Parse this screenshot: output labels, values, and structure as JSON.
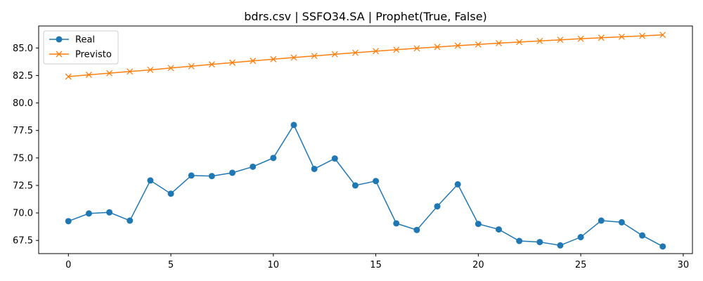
{
  "chart_data": {
    "type": "line",
    "title": "bdrs.csv | SSFO34.SA | Prophet(True, False)",
    "xlabel": "",
    "ylabel": "",
    "xlim": [
      -1.45,
      30.45
    ],
    "ylim": [
      66.3,
      87.0
    ],
    "x_ticks": [
      0,
      5,
      10,
      15,
      20,
      25,
      30
    ],
    "y_ticks": [
      67.5,
      70.0,
      72.5,
      75.0,
      77.5,
      80.0,
      82.5,
      85.0
    ],
    "y_tick_labels": [
      "67.5",
      "70.0",
      "72.5",
      "75.0",
      "77.5",
      "80.0",
      "82.5",
      "85.0"
    ],
    "grid": false,
    "legend_position": "top-left",
    "x": [
      0,
      1,
      2,
      3,
      4,
      5,
      6,
      7,
      8,
      9,
      10,
      11,
      12,
      13,
      14,
      15,
      16,
      17,
      18,
      19,
      20,
      21,
      22,
      23,
      24,
      25,
      26,
      27,
      28,
      29
    ],
    "series": [
      {
        "name": "Real",
        "color": "#1f77b4",
        "marker": "circle",
        "values": [
          69.25,
          69.95,
          70.05,
          69.3,
          72.95,
          71.75,
          73.4,
          73.35,
          73.65,
          74.2,
          75.0,
          78.0,
          74.0,
          74.95,
          72.5,
          72.9,
          69.05,
          68.45,
          70.6,
          72.6,
          69.0,
          68.5,
          67.45,
          67.35,
          67.05,
          67.8,
          69.3,
          69.15,
          67.95,
          66.95
        ]
      },
      {
        "name": "Previsto",
        "color": "#ff7f0e",
        "marker": "x",
        "values": [
          82.4,
          82.56,
          82.71,
          82.86,
          83.01,
          83.18,
          83.34,
          83.51,
          83.67,
          83.83,
          83.98,
          84.13,
          84.28,
          84.43,
          84.57,
          84.71,
          84.84,
          84.97,
          85.09,
          85.21,
          85.32,
          85.44,
          85.54,
          85.64,
          85.74,
          85.84,
          85.93,
          86.02,
          86.1,
          86.19
        ]
      }
    ]
  }
}
